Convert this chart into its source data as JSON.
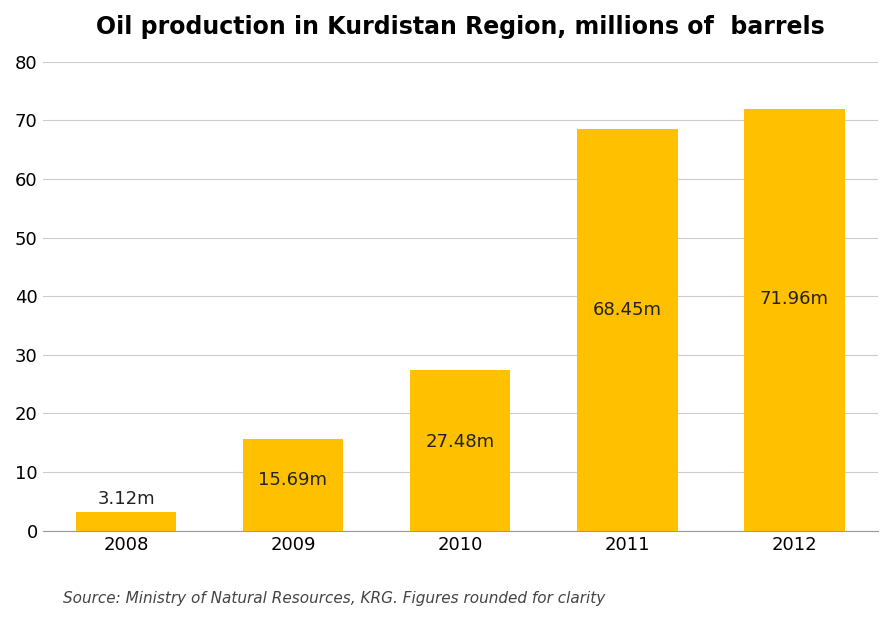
{
  "title": "Oil production in Kurdistan Region, millions of  barrels",
  "categories": [
    "2008",
    "2009",
    "2010",
    "2011",
    "2012"
  ],
  "values": [
    3.12,
    15.69,
    27.48,
    68.45,
    71.96
  ],
  "labels": [
    "3.12m",
    "15.69m",
    "27.48m",
    "68.45m",
    "71.96m"
  ],
  "bar_color": "#FFC000",
  "ylim": [
    0,
    80
  ],
  "yticks": [
    0,
    10,
    20,
    30,
    40,
    50,
    60,
    70,
    80
  ],
  "source_text": "Source: Ministry of Natural Resources, KRG. Figures rounded for clarity",
  "background_color": "#ffffff",
  "title_fontsize": 17,
  "label_fontsize": 13,
  "tick_fontsize": 13,
  "source_fontsize": 11,
  "label_color": "#222222",
  "bar_width": 0.6
}
